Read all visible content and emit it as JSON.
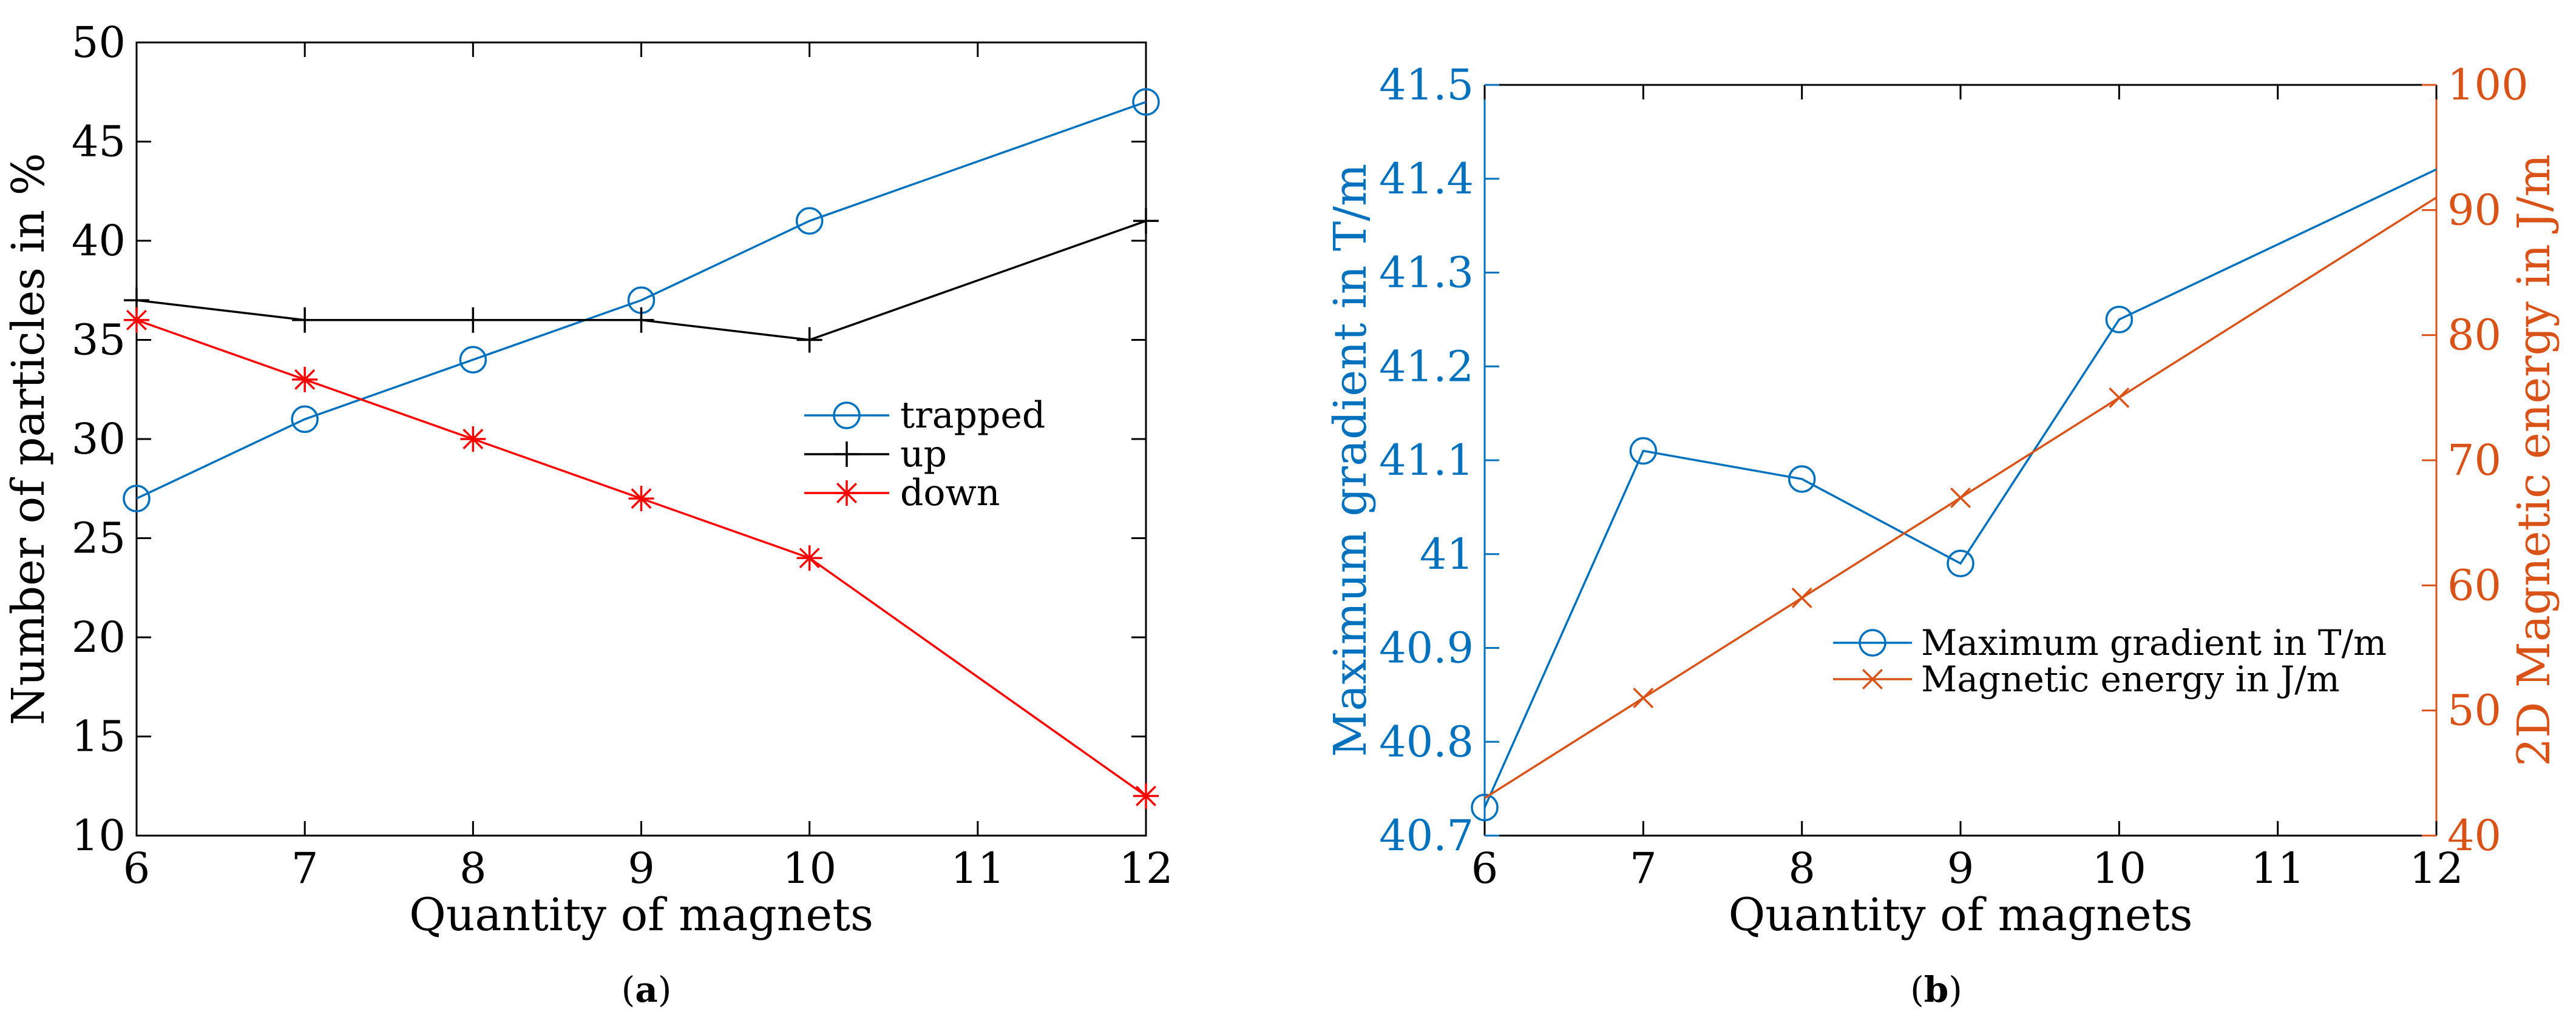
{
  "panels": {
    "a": {
      "caption_open": "(",
      "caption_letter": "a",
      "caption_close": ")"
    },
    "b": {
      "caption_open": "(",
      "caption_letter": "b",
      "caption_close": ")"
    }
  },
  "chart_data": [
    {
      "id": "a",
      "type": "line",
      "title": "",
      "xlabel": "Quantity of magnets",
      "ylabel": "Number of particles in %",
      "xlim": [
        6,
        12
      ],
      "ylim": [
        10,
        50
      ],
      "xticks": [
        6,
        7,
        8,
        9,
        10,
        11,
        12
      ],
      "yticks": [
        10,
        15,
        20,
        25,
        30,
        35,
        40,
        45,
        50
      ],
      "grid": false,
      "legend_position": "center-right",
      "series": [
        {
          "name": "trapped",
          "color": "#0072BD",
          "marker": "circle",
          "x": [
            6,
            7,
            8,
            9,
            10,
            12
          ],
          "y": [
            27,
            31,
            34,
            37,
            41,
            47
          ]
        },
        {
          "name": "up",
          "color": "#000000",
          "marker": "plus",
          "x": [
            6,
            7,
            8,
            9,
            10,
            12
          ],
          "y": [
            37,
            36,
            36,
            36,
            35,
            41
          ]
        },
        {
          "name": "down",
          "color": "#FF0000",
          "marker": "star",
          "x": [
            6,
            7,
            8,
            9,
            10,
            12
          ],
          "y": [
            36,
            33,
            30,
            27,
            24,
            12
          ]
        }
      ]
    },
    {
      "id": "b",
      "type": "line",
      "title": "",
      "xlabel": "Quantity of magnets",
      "ylabel_left": "Maximum gradient in T/m",
      "ylabel_right": "2D Magnetic energy in J/m",
      "xlim": [
        6,
        12
      ],
      "ylim_left": [
        40.7,
        41.5
      ],
      "ylim_right": [
        40,
        100
      ],
      "xticks": [
        6,
        7,
        8,
        9,
        10,
        11,
        12
      ],
      "yticks_left": [
        "40.7",
        "40.8",
        "40.9",
        "41",
        "41.1",
        "41.2",
        "41.3",
        "41.4",
        "41.5"
      ],
      "yticks_right": [
        "40",
        "50",
        "60",
        "70",
        "80",
        "90",
        "100"
      ],
      "grid": false,
      "legend_position": "lower-right",
      "left_axis_color": "#0072BD",
      "right_axis_color": "#D95319",
      "series": [
        {
          "name": "Maximum gradient in T/m",
          "axis": "left",
          "color": "#0072BD",
          "marker": "circle",
          "x": [
            6,
            7,
            8,
            9,
            10,
            12
          ],
          "y": [
            40.73,
            41.11,
            41.08,
            40.99,
            41.25,
            41.41
          ],
          "marker_at": [
            0,
            1,
            2,
            3,
            4
          ]
        },
        {
          "name": "Magnetic energy in J/m",
          "axis": "right",
          "color": "#D95319",
          "marker": "x",
          "x": [
            6,
            7,
            8,
            9,
            10,
            12
          ],
          "y": [
            43,
            51,
            59,
            67,
            75,
            91
          ],
          "marker_at": [
            1,
            2,
            3,
            4
          ]
        }
      ]
    }
  ]
}
